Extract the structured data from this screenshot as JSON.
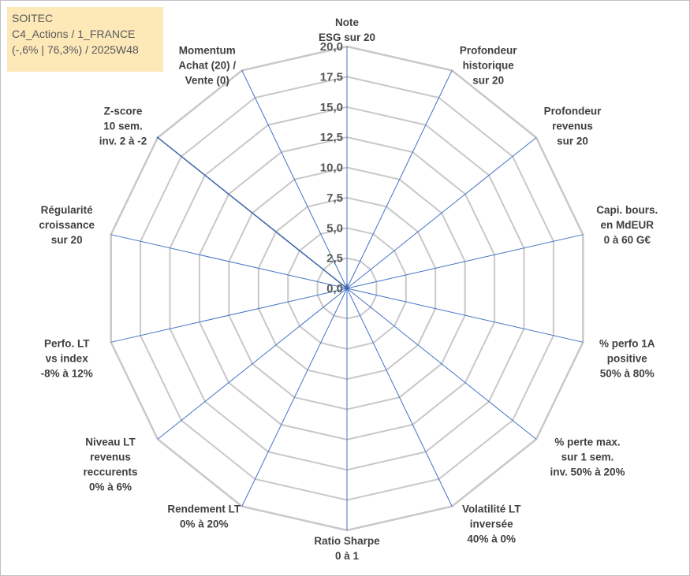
{
  "title_box": {
    "line1": "SOITEC",
    "line2": "C4_Actions / 1_FRANCE",
    "line3": "(-,6% | 76,3%) / 2025W48"
  },
  "colors": {
    "grid": "#c8c8c8",
    "spoke": "#4472c4",
    "series_fill": "#4a78b8",
    "series_stroke": "#3a64a8",
    "title_bg": "#fde8b8"
  },
  "chart_data": {
    "type": "radar",
    "rmin": 0,
    "rmax": 20,
    "tick_step": 2.5,
    "tick_labels": [
      "0,0",
      "2,5",
      "5,0",
      "7,5",
      "10,0",
      "12,5",
      "15,0",
      "17,5",
      "20,0"
    ],
    "axes": [
      [
        "Note",
        "ESG sur 20"
      ],
      [
        "Profondeur",
        "historique",
        "sur 20"
      ],
      [
        "Profondeur",
        "revenus",
        "sur 20"
      ],
      [
        "Capi. bours.",
        "en MdEUR",
        "0 à 60 G€"
      ],
      [
        "% perfo 1A",
        "positive",
        "50% à 80%"
      ],
      [
        "% perte max.",
        "sur 1 sem.",
        "inv. 50% à 20%"
      ],
      [
        "Volatilité LT",
        "inversée",
        "40% à 0%"
      ],
      [
        "Ratio Sharpe",
        "0 à 1"
      ],
      [
        "Rendement LT",
        "0% à 20%"
      ],
      [
        "Niveau LT",
        "revenus",
        "reccurents",
        "0% à 6%"
      ],
      [
        "Perfo. LT",
        "vs index",
        "-8% à 12%"
      ],
      [
        "Régularité",
        "croissance",
        "sur 20"
      ],
      [
        "Z-score",
        "10 sem.",
        "inv. 2 à -2"
      ],
      [
        "Momentum",
        "Achat (20) /",
        "Vente (0)"
      ]
    ],
    "series": [
      {
        "name": "SOITEC",
        "values": [
          0.3,
          0.0,
          0.0,
          0.0,
          0.0,
          0.0,
          0.0,
          0.0,
          0.0,
          0.0,
          0.0,
          0.0,
          20.0,
          0.0
        ]
      }
    ]
  }
}
